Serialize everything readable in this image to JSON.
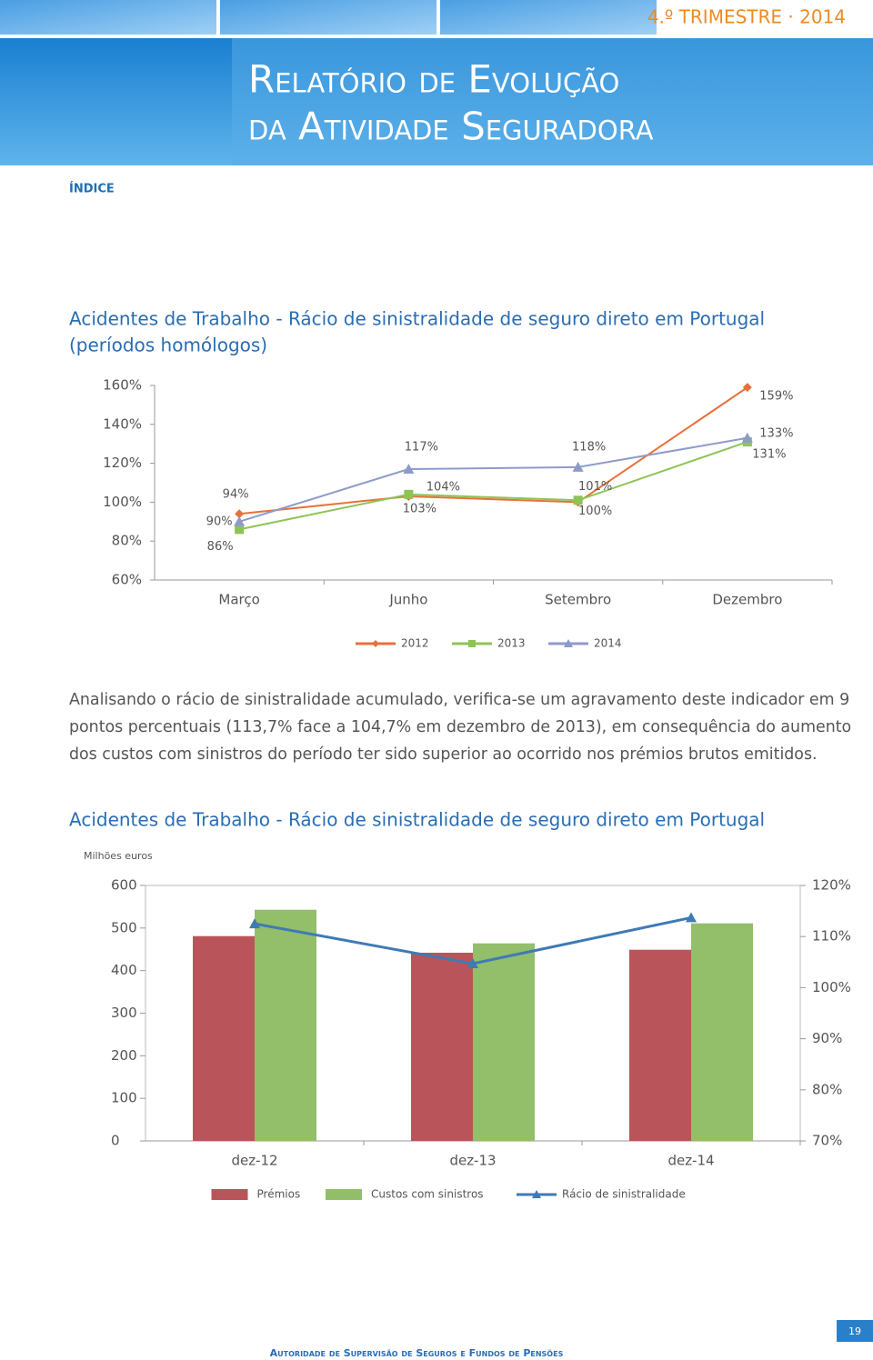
{
  "header": {
    "period": "4.º TRIMESTRE · 2014",
    "title_line1": "Relatório de Evolução",
    "title_line2": "da Atividade Seguradora",
    "index_link": "ÍNDICE"
  },
  "paragraph": "Analisando o rácio de sinistralidade acumulado, verifica-se um agravamento deste indicador em 9 pontos percentuais (113,7% face a 104,7% em dezembro de 2013), em consequência do aumento dos custos com sinistros do período ter sido superior ao ocorrido nos prémios brutos emitidos.",
  "footer": {
    "organization": "Autoridade de Supervisão de Seguros e Fundos de Pensões",
    "page_number": "19"
  },
  "chart_data": [
    {
      "type": "line",
      "title": "Acidentes de Trabalho - Rácio de sinistralidade de seguro direto em Portugal",
      "subtitle": "(períodos homólogos)",
      "categories": [
        "Março",
        "Junho",
        "Setembro",
        "Dezembro"
      ],
      "series": [
        {
          "name": "2012",
          "color": "#e8703a",
          "marker": "diamond",
          "values": [
            94,
            103,
            100,
            159
          ],
          "value_labels": [
            "94%",
            "103%",
            "100%",
            "159%"
          ]
        },
        {
          "name": "2013",
          "color": "#8dc455",
          "marker": "square",
          "values": [
            86,
            104,
            101,
            131
          ],
          "value_labels": [
            "86%",
            "104%",
            "101%",
            "131%"
          ]
        },
        {
          "name": "2014",
          "color": "#8e9bc9",
          "marker": "triangle",
          "values": [
            90,
            117,
            118,
            133
          ],
          "value_labels": [
            "90%",
            "117%",
            "118%",
            "133%"
          ]
        }
      ],
      "ylim": [
        60,
        160
      ],
      "yticks": [
        {
          "value": 60,
          "label": "60%"
        },
        {
          "value": 80,
          "label": "80%"
        },
        {
          "value": 100,
          "label": "100%"
        },
        {
          "value": 120,
          "label": "120%"
        },
        {
          "value": 140,
          "label": "140%"
        },
        {
          "value": 160,
          "label": "160%"
        }
      ],
      "legend": "bottom"
    },
    {
      "type": "bar",
      "title": "Acidentes de Trabalho - Rácio de sinistralidade de seguro direto em Portugal",
      "y_label": "Milhões euros",
      "categories": [
        "dez-12",
        "dez-13",
        "dez-14"
      ],
      "series": [
        {
          "name": "Prémios",
          "color": "#b9555a",
          "values": [
            481,
            442,
            449
          ]
        },
        {
          "name": "Custos com sinistros",
          "color": "#93be6a",
          "values": [
            543,
            464,
            511
          ]
        },
        {
          "name": "Rácio de sinistralidade",
          "color": "#3f7ab5",
          "type": "line",
          "marker": "triangle",
          "axis": "y2",
          "values": [
            112.5,
            104.7,
            113.7
          ]
        }
      ],
      "ylim": [
        0,
        600
      ],
      "yticks": [
        0,
        100,
        200,
        300,
        400,
        500,
        600
      ],
      "y2lim": [
        70,
        120
      ],
      "y2ticks": [
        {
          "value": 70,
          "label": "70%"
        },
        {
          "value": 80,
          "label": "80%"
        },
        {
          "value": 90,
          "label": "90%"
        },
        {
          "value": 100,
          "label": "100%"
        },
        {
          "value": 110,
          "label": "110%"
        },
        {
          "value": 120,
          "label": "120%"
        }
      ],
      "legend": "bottom"
    }
  ]
}
